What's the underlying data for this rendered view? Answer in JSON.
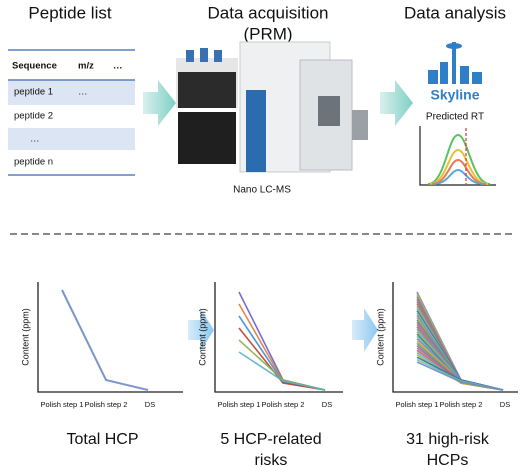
{
  "top": {
    "steps": [
      {
        "title": "Peptide list"
      },
      {
        "title": [
          "Data acquisition",
          "(PRM)"
        ],
        "caption": "Nano LC-MS"
      },
      {
        "title": "Data analysis",
        "logo": "Skyline",
        "plot_label": "Predicted RT"
      }
    ]
  },
  "table": {
    "header": [
      "Sequence",
      "m/z",
      "…"
    ],
    "rows": [
      [
        "peptide 1",
        "…"
      ],
      [
        "peptide 2"
      ],
      [
        "…"
      ],
      [
        "peptide n"
      ]
    ]
  },
  "panels": [
    {
      "y_label": "Content (ppm)",
      "x_labels": [
        "Polish step 1",
        "Polish step 2",
        "DS"
      ],
      "caption": [
        "Total HCP"
      ]
    },
    {
      "y_label": "Content (ppm)",
      "x_labels": [
        "Polish step 1",
        "Polish step 2",
        "DS"
      ],
      "caption": [
        "5 HCP-related",
        "risks"
      ]
    },
    {
      "y_label": "Content (ppm)",
      "x_labels": [
        "Polish step 1",
        "Polish step 2",
        "DS"
      ],
      "caption": [
        "31 high-risk",
        "HCPs"
      ]
    }
  ]
}
